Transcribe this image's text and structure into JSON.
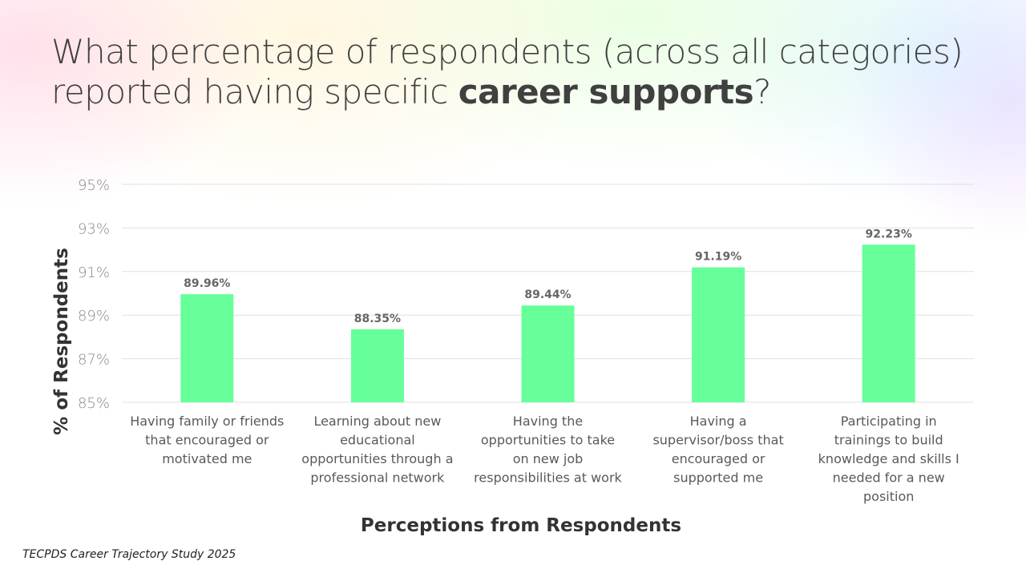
{
  "title": {
    "pre": "What percentage of respondents (across all categories) reported having specific ",
    "bold": "career supports",
    "post": "?"
  },
  "footer": "TECPDS Career Trajectory Study 2025",
  "colors": {
    "bar": "#66FF99",
    "grid": "#e0e0e0",
    "text": "#404040"
  },
  "chart_data": {
    "type": "bar",
    "title": "What percentage of respondents (across all categories) reported having specific career supports?",
    "xlabel": "Perceptions from Respondents",
    "ylabel": "% of Respondents",
    "ylim": [
      85,
      95
    ],
    "yticks": [
      85,
      87,
      89,
      91,
      93,
      95
    ],
    "ytick_labels": [
      "85%",
      "87%",
      "89%",
      "91%",
      "93%",
      "95%"
    ],
    "categories": [
      [
        "Having family or friends",
        "that encouraged or",
        "motivated me"
      ],
      [
        "Learning about new",
        "educational",
        "opportunities through a",
        "professional network"
      ],
      [
        "Having the",
        "opportunities to take",
        "on new job",
        "responsibilities at work"
      ],
      [
        "Having a",
        "supervisor/boss that",
        "encouraged or",
        "supported me"
      ],
      [
        "Participating in",
        "trainings to build",
        "knowledge and skills I",
        "needed for a new",
        "position"
      ]
    ],
    "values": [
      89.96,
      88.35,
      89.44,
      91.19,
      92.23
    ],
    "data_labels": [
      "89.96%",
      "88.35%",
      "89.44%",
      "91.19%",
      "92.23%"
    ],
    "grid": true
  }
}
